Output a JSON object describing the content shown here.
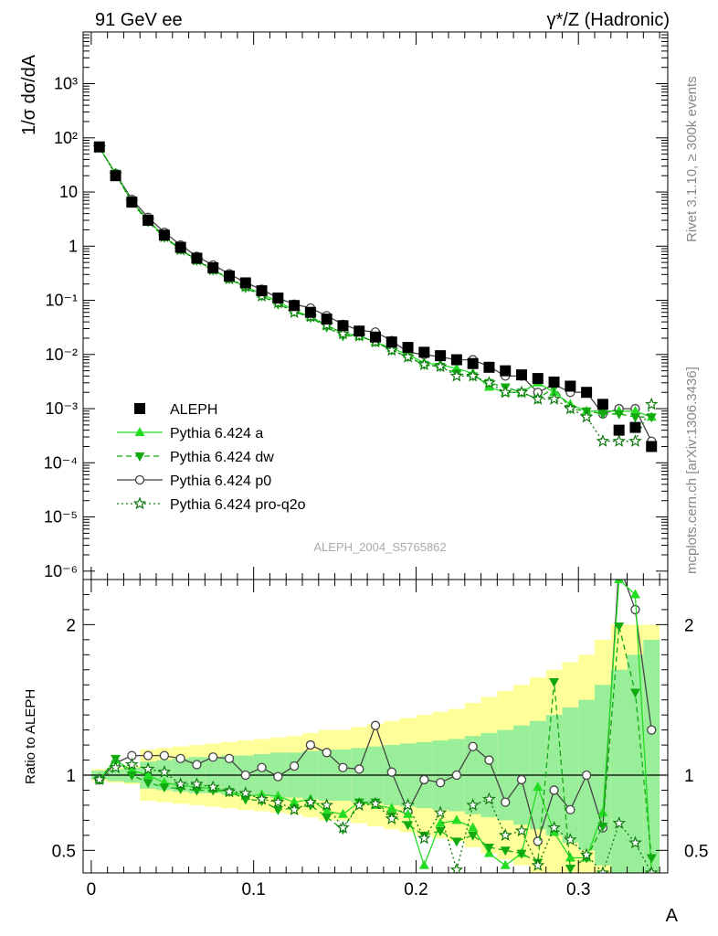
{
  "header": {
    "left": "91 GeV ee",
    "right": "γ*/Z (Hadronic)"
  },
  "side_labels": {
    "rivet": "Rivet 3.1.10, ≥ 300k events",
    "mcplots": "mcplots.cern.ch [arXiv:1306.3436]"
  },
  "watermark": "ALEPH_2004_S5765862",
  "legend": [
    {
      "label": "ALEPH",
      "color": "#000000",
      "marker": "square",
      "dash": "none"
    },
    {
      "label": "Pythia 6.424 a",
      "color": "#22dd22",
      "marker": "triangle-up",
      "dash": "solid"
    },
    {
      "label": "Pythia 6.424 dw",
      "color": "#11aa11",
      "marker": "triangle-down",
      "dash": "dashed"
    },
    {
      "label": "Pythia 6.424 p0",
      "color": "#444444",
      "marker": "circle-open",
      "dash": "solid"
    },
    {
      "label": "Pythia 6.424 pro-q2o",
      "color": "#117711",
      "marker": "star-open",
      "dash": "dotted"
    }
  ],
  "chart_data": [
    {
      "type": "line",
      "panel": "main",
      "ylabel": "1/σ  dσ/dA",
      "xlabel": "",
      "xlim": [
        -0.005,
        0.355
      ],
      "ylim": [
        7e-07,
        9000
      ],
      "yscale": "log",
      "ytick_labels": [
        "10⁻⁶",
        "10⁻⁵",
        "10⁻⁴",
        "10⁻³",
        "10⁻²",
        "10⁻¹",
        "1",
        "10",
        "10²",
        "10³"
      ],
      "x": [
        0.005,
        0.015,
        0.025,
        0.035,
        0.045,
        0.055,
        0.065,
        0.075,
        0.085,
        0.095,
        0.105,
        0.115,
        0.125,
        0.135,
        0.145,
        0.155,
        0.165,
        0.175,
        0.185,
        0.195,
        0.205,
        0.215,
        0.225,
        0.235,
        0.245,
        0.255,
        0.265,
        0.275,
        0.285,
        0.295,
        0.305,
        0.315,
        0.325,
        0.335,
        0.345
      ],
      "series": [
        {
          "name": "ALEPH",
          "values": [
            68,
            20,
            6.5,
            3.0,
            1.6,
            0.95,
            0.6,
            0.4,
            0.28,
            0.21,
            0.15,
            0.11,
            0.08,
            0.06,
            0.045,
            0.034,
            0.027,
            0.021,
            0.017,
            0.0135,
            0.011,
            0.0095,
            0.008,
            0.0068,
            0.0058,
            0.005,
            0.0042,
            0.0036,
            0.0031,
            0.0026,
            0.002,
            0.0012,
            0.0004,
            0.00045,
            0.0002
          ]
        },
        {
          "name": "Pythia 6.424 a",
          "values": [
            66,
            22,
            6.7,
            3.0,
            1.5,
            0.88,
            0.55,
            0.36,
            0.25,
            0.18,
            0.13,
            0.095,
            0.065,
            0.05,
            0.034,
            0.025,
            0.022,
            0.017,
            0.013,
            0.01,
            0.007,
            0.0065,
            0.0055,
            0.0045,
            0.0025,
            0.002,
            0.002,
            0.003,
            0.002,
            0.0012,
            0.0009,
            0.0009,
            0.0009,
            0.0009,
            0.0007
          ]
        },
        {
          "name": "Pythia 6.424 dw",
          "values": [
            66,
            22,
            6.4,
            2.8,
            1.45,
            0.86,
            0.54,
            0.36,
            0.25,
            0.17,
            0.12,
            0.085,
            0.062,
            0.048,
            0.032,
            0.022,
            0.022,
            0.017,
            0.012,
            0.009,
            0.0065,
            0.006,
            0.0045,
            0.004,
            0.003,
            0.0025,
            0.002,
            0.0015,
            0.0025,
            0.001,
            0.0009,
            0.0008,
            0.0008,
            0.0007,
            0.0007
          ]
        },
        {
          "name": "Pythia 6.424 p0",
          "values": [
            66,
            22,
            7.3,
            3.4,
            1.8,
            1.05,
            0.65,
            0.45,
            0.31,
            0.21,
            0.16,
            0.11,
            0.085,
            0.072,
            0.052,
            0.036,
            0.028,
            0.026,
            0.018,
            0.011,
            0.01,
            0.009,
            0.008,
            0.008,
            0.006,
            0.004,
            0.004,
            0.002,
            0.0028,
            0.002,
            0.002,
            0.0008,
            0.001,
            0.001,
            0.00025
          ]
        },
        {
          "name": "Pythia 6.424 pro-q2o",
          "values": [
            66,
            21,
            6.6,
            3.0,
            1.5,
            0.86,
            0.56,
            0.37,
            0.25,
            0.18,
            0.12,
            0.09,
            0.06,
            0.05,
            0.035,
            0.024,
            0.022,
            0.017,
            0.012,
            0.009,
            0.0065,
            0.006,
            0.004,
            0.004,
            0.003,
            0.002,
            0.002,
            0.0015,
            0.0015,
            0.001,
            0.0007,
            0.00025,
            0.00025,
            0.00025,
            0.0012
          ]
        }
      ]
    },
    {
      "type": "line",
      "panel": "ratio",
      "ylabel": "Ratio to ALEPH",
      "xlabel": "A",
      "xlim": [
        -0.005,
        0.355
      ],
      "ylim": [
        0.35,
        2.3
      ],
      "ytick_labels": [
        "0.5",
        "1",
        "2"
      ],
      "xtick_labels": [
        "0",
        "0.1",
        "0.2",
        "0.3"
      ],
      "x": [
        0.005,
        0.015,
        0.025,
        0.035,
        0.045,
        0.055,
        0.065,
        0.075,
        0.085,
        0.095,
        0.105,
        0.115,
        0.125,
        0.135,
        0.145,
        0.155,
        0.165,
        0.175,
        0.185,
        0.195,
        0.205,
        0.215,
        0.225,
        0.235,
        0.245,
        0.255,
        0.265,
        0.275,
        0.285,
        0.295,
        0.305,
        0.315,
        0.325,
        0.335,
        0.345
      ],
      "band_inner": [
        0.03,
        0.04,
        0.05,
        0.09,
        0.1,
        0.11,
        0.12,
        0.12,
        0.13,
        0.13,
        0.14,
        0.15,
        0.15,
        0.16,
        0.17,
        0.17,
        0.18,
        0.19,
        0.2,
        0.21,
        0.22,
        0.23,
        0.24,
        0.26,
        0.28,
        0.3,
        0.33,
        0.36,
        0.4,
        0.45,
        0.5,
        0.6,
        0.7,
        0.8,
        0.9
      ],
      "band_outer": [
        0.04,
        0.05,
        0.06,
        0.17,
        0.18,
        0.19,
        0.2,
        0.21,
        0.22,
        0.23,
        0.24,
        0.25,
        0.26,
        0.28,
        0.3,
        0.3,
        0.32,
        0.34,
        0.36,
        0.38,
        0.4,
        0.42,
        0.44,
        0.48,
        0.52,
        0.56,
        0.6,
        0.65,
        0.7,
        0.75,
        0.8,
        0.9,
        1.0,
        1.0,
        1.0
      ],
      "series": [
        {
          "name": "Pythia 6.424 a",
          "values": [
            0.97,
            1.1,
            1.03,
            1.0,
            0.95,
            0.93,
            0.92,
            0.91,
            0.89,
            0.86,
            0.87,
            0.86,
            0.82,
            0.84,
            0.76,
            0.74,
            0.82,
            0.8,
            0.78,
            0.74,
            0.4,
            0.68,
            0.7,
            0.65,
            0.48,
            0.4,
            0.48,
            0.92,
            0.62,
            0.45,
            0.45,
            0.75,
            2.3,
            2.2,
            0.35
          ]
        },
        {
          "name": "Pythia 6.424 dw",
          "values": [
            0.97,
            1.11,
            1.0,
            0.95,
            0.92,
            0.91,
            0.9,
            0.9,
            0.89,
            0.84,
            0.83,
            0.77,
            0.78,
            0.8,
            0.72,
            0.64,
            0.82,
            0.82,
            0.73,
            0.67,
            0.6,
            0.63,
            0.56,
            0.6,
            0.52,
            0.5,
            0.48,
            0.42,
            1.62,
            0.38,
            0.45,
            0.66,
            1.99,
            1.55,
            0.45
          ]
        },
        {
          "name": "Pythia 6.424 p0",
          "values": [
            0.97,
            1.08,
            1.13,
            1.13,
            1.13,
            1.11,
            1.07,
            1.12,
            1.11,
            1.0,
            1.05,
            0.99,
            1.06,
            1.2,
            1.15,
            1.05,
            1.04,
            1.33,
            1.02,
            0.76,
            0.97,
            0.95,
            1.0,
            1.19,
            1.1,
            0.82,
            0.97,
            0.56,
            0.9,
            0.77,
            1.0,
            0.65,
            2.4,
            2.1,
            1.3
          ]
        },
        {
          "name": "Pythia 6.424 pro-q2o",
          "values": [
            0.97,
            1.05,
            1.07,
            1.04,
            1.02,
            0.94,
            0.94,
            0.92,
            0.89,
            0.88,
            0.84,
            0.82,
            0.77,
            0.82,
            0.8,
            0.65,
            0.8,
            0.81,
            0.71,
            0.8,
            0.58,
            0.75,
            0.37,
            0.8,
            0.84,
            0.6,
            0.63,
            0.4,
            0.65,
            0.57,
            0.47,
            0.35,
            0.68,
            0.55,
            0.35
          ]
        }
      ]
    }
  ]
}
